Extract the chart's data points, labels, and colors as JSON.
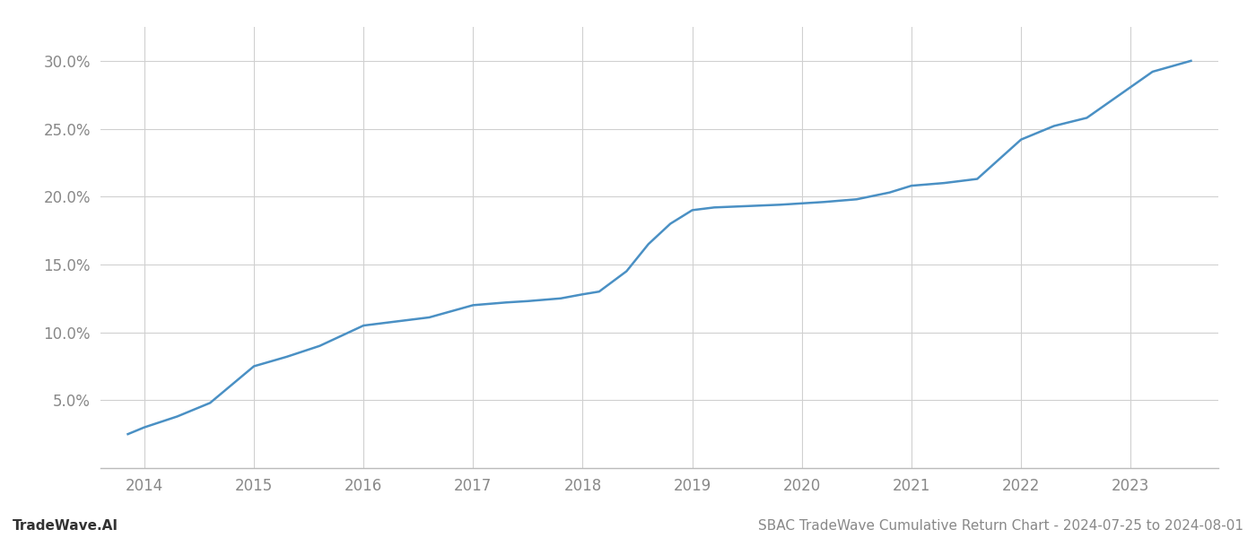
{
  "x_values": [
    2013.85,
    2014.0,
    2014.3,
    2014.6,
    2015.0,
    2015.3,
    2015.6,
    2016.0,
    2016.3,
    2016.6,
    2017.0,
    2017.3,
    2017.5,
    2017.8,
    2018.0,
    2018.15,
    2018.4,
    2018.6,
    2018.8,
    2019.0,
    2019.2,
    2019.5,
    2019.8,
    2020.0,
    2020.2,
    2020.5,
    2020.8,
    2021.0,
    2021.3,
    2021.6,
    2022.0,
    2022.3,
    2022.6,
    2022.9,
    2023.2,
    2023.55
  ],
  "y_values": [
    2.5,
    3.0,
    3.8,
    4.8,
    7.5,
    8.2,
    9.0,
    10.5,
    10.8,
    11.1,
    12.0,
    12.2,
    12.3,
    12.5,
    12.8,
    13.0,
    14.5,
    16.5,
    18.0,
    19.0,
    19.2,
    19.3,
    19.4,
    19.5,
    19.6,
    19.8,
    20.3,
    20.8,
    21.0,
    21.3,
    24.2,
    25.2,
    25.8,
    27.5,
    29.2,
    30.0
  ],
  "line_color": "#4a90c4",
  "line_width": 1.8,
  "footer_left": "TradeWave.AI",
  "footer_right": "SBAC TradeWave Cumulative Return Chart - 2024-07-25 to 2024-08-01",
  "xlim": [
    2013.6,
    2023.8
  ],
  "ylim": [
    0.0,
    32.5
  ],
  "yticks": [
    5.0,
    10.0,
    15.0,
    20.0,
    25.0,
    30.0
  ],
  "xticks": [
    2014,
    2015,
    2016,
    2017,
    2018,
    2019,
    2020,
    2021,
    2022,
    2023
  ],
  "grid_color": "#d0d0d0",
  "bg_color": "#ffffff",
  "tick_label_color": "#888888",
  "tick_label_size": 12,
  "footer_fontsize": 11
}
